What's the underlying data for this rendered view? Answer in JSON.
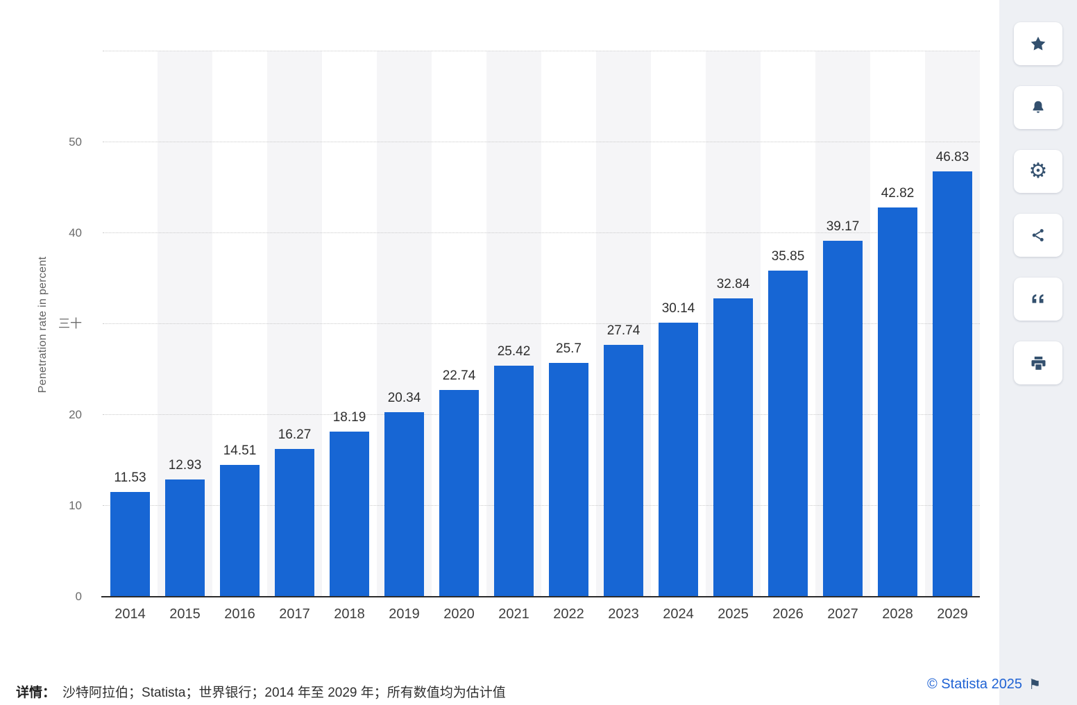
{
  "chart_data": {
    "type": "bar",
    "categories": [
      "2014",
      "2015",
      "2016",
      "2017",
      "2018",
      "2019",
      "2020",
      "2021",
      "2022",
      "2023",
      "2024",
      "2025",
      "2026",
      "2027",
      "2028",
      "2029"
    ],
    "values": [
      11.53,
      12.93,
      14.51,
      16.27,
      18.19,
      20.34,
      22.74,
      25.42,
      25.7,
      27.74,
      30.14,
      32.84,
      35.85,
      39.17,
      42.82,
      46.83
    ],
    "value_labels": [
      "11.53",
      "12.93",
      "14.51",
      "16.27",
      "18.19",
      "20.34",
      "22.74",
      "25.42",
      "25.7",
      "27.74",
      "30.14",
      "32.84",
      "35.85",
      "39.17",
      "42.82",
      "46.83"
    ],
    "title": "",
    "xlabel": "",
    "ylabel": "Penetration rate in percent",
    "ylim": [
      0,
      60
    ],
    "yticks": [
      {
        "v": 0,
        "label": "0"
      },
      {
        "v": 10,
        "label": "10"
      },
      {
        "v": 20,
        "label": "20"
      },
      {
        "v": 30,
        "label": "三十"
      },
      {
        "v": 40,
        "label": "40"
      },
      {
        "v": 50,
        "label": "50"
      }
    ],
    "gridlines": [
      10,
      20,
      30,
      40,
      50,
      60
    ],
    "grid": "horizontal-dotted",
    "legend": null,
    "band_pattern": "alternate-columns-shaded"
  },
  "colors": {
    "bar": "#1766d4",
    "band": "#f5f5f7",
    "axis": "#2b2b2b",
    "grid": "#c9c9c9",
    "label": "#2e2e2e",
    "tick": "#6b6b6b",
    "accent_blue": "#2063d4",
    "icon": "#33506e",
    "sidebar_bg": "#eef0f4"
  },
  "toolbar": {
    "buttons": [
      {
        "icon": "star-icon",
        "action": "favorite"
      },
      {
        "icon": "bell-icon",
        "action": "notifications"
      },
      {
        "icon": "gear-icon",
        "action": "settings"
      },
      {
        "icon": "share-icon",
        "action": "share"
      },
      {
        "icon": "quote-icon",
        "action": "cite"
      },
      {
        "icon": "printer-icon",
        "action": "print"
      }
    ]
  },
  "footer": {
    "details_label": "详情：",
    "details_text": "沙特阿拉伯；Statista；世界银行；2014 年至 2029 年；所有数值均为估计值",
    "copyright": "© Statista 2025"
  }
}
